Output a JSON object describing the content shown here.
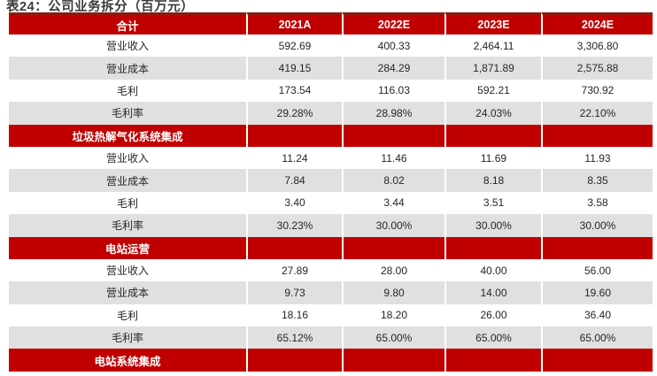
{
  "title": "表24：公司业务拆分（百万元）",
  "colors": {
    "accent_red": "#c00000",
    "accent_red_dark": "#8d1a12",
    "row_shade_gray": "#e0e0e0",
    "header_text": "#ffffff",
    "body_text": "#262626",
    "title_text": "#3b3b3b"
  },
  "table": {
    "header": [
      "合计",
      "2021A",
      "2022E",
      "2023E",
      "2024E"
    ],
    "rows": [
      {
        "type": "data",
        "label": "营业收入",
        "values": [
          "592.69",
          "400.33",
          "2,464.11",
          "3,306.80"
        ]
      },
      {
        "type": "data",
        "label": "营业成本",
        "values": [
          "419.15",
          "284.29",
          "1,871.89",
          "2,575.88"
        ]
      },
      {
        "type": "data",
        "label": "毛利",
        "values": [
          "173.54",
          "116.03",
          "592.21",
          "730.92"
        ]
      },
      {
        "type": "data",
        "label": "毛利率",
        "values": [
          "29.28%",
          "28.98%",
          "24.03%",
          "22.10%"
        ]
      },
      {
        "type": "section",
        "label": "垃圾热解气化系统集成",
        "values": [
          "",
          "",
          "",
          ""
        ]
      },
      {
        "type": "data",
        "label": "营业收入",
        "values": [
          "11.24",
          "11.46",
          "11.69",
          "11.93"
        ]
      },
      {
        "type": "data",
        "label": "营业成本",
        "values": [
          "7.84",
          "8.02",
          "8.18",
          "8.35"
        ]
      },
      {
        "type": "data",
        "label": "毛利",
        "values": [
          "3.40",
          "3.44",
          "3.51",
          "3.58"
        ]
      },
      {
        "type": "data",
        "label": "毛利率",
        "values": [
          "30.23%",
          "30.00%",
          "30.00%",
          "30.00%"
        ]
      },
      {
        "type": "section",
        "label": "电站运营",
        "values": [
          "",
          "",
          "",
          ""
        ]
      },
      {
        "type": "data",
        "label": "营业收入",
        "values": [
          "27.89",
          "28.00",
          "40.00",
          "56.00"
        ]
      },
      {
        "type": "data",
        "label": "营业成本",
        "values": [
          "9.73",
          "9.80",
          "14.00",
          "19.60"
        ]
      },
      {
        "type": "data",
        "label": "毛利",
        "values": [
          "18.16",
          "18.20",
          "26.00",
          "36.40"
        ]
      },
      {
        "type": "data",
        "label": "毛利率",
        "values": [
          "65.12%",
          "65.00%",
          "65.00%",
          "65.00%"
        ]
      },
      {
        "type": "section",
        "label": "电站系统集成",
        "values": [
          "",
          "",
          "",
          ""
        ]
      }
    ]
  }
}
